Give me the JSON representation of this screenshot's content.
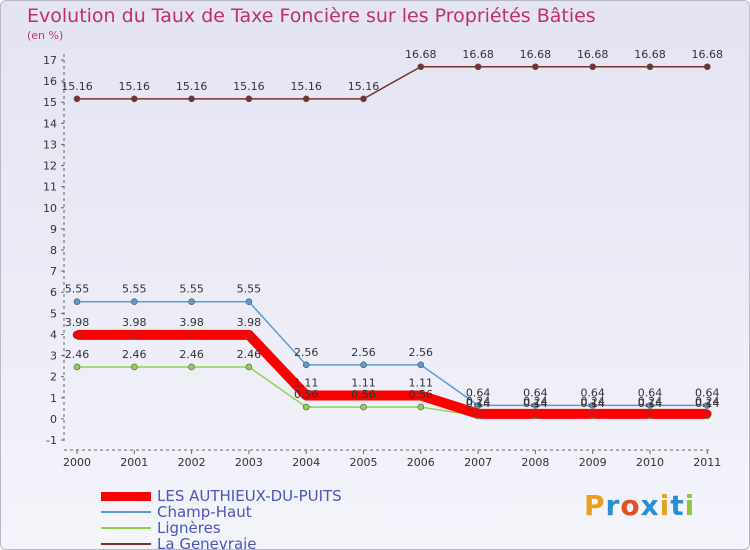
{
  "chart_data": {
    "type": "line",
    "title": "Evolution du Taux de Taxe Foncière sur les Propriétés Bâties",
    "ylabel": "(en %)",
    "xlabel": "",
    "x": [
      "2000",
      "2001",
      "2002",
      "2003",
      "2004",
      "2005",
      "2006",
      "2007",
      "2008",
      "2009",
      "2010",
      "2011"
    ],
    "ylim": [
      -1,
      17
    ],
    "yticks": [
      -1,
      0,
      1,
      2,
      3,
      4,
      5,
      6,
      7,
      8,
      9,
      10,
      11,
      12,
      13,
      14,
      15,
      16,
      17
    ],
    "grid": false,
    "legend_position": "bottom-left",
    "series": [
      {
        "name": "LES AUTHIEUX-DU-PUITS",
        "color": "#ff0000",
        "values": [
          3.98,
          3.98,
          3.98,
          3.98,
          1.11,
          1.11,
          1.11,
          0.24,
          0.24,
          0.24,
          0.24,
          0.24
        ],
        "labels": [
          "3.98",
          "3.98",
          "3.98",
          "3.98",
          "1.11",
          "1.11",
          "1.11",
          "0.24",
          "0.24",
          "0.24",
          "0.24",
          "0.24"
        ]
      },
      {
        "name": "Champ-Haut",
        "color": "#5b9bd5",
        "values": [
          5.55,
          5.55,
          5.55,
          5.55,
          2.56,
          2.56,
          2.56,
          0.64,
          0.64,
          0.64,
          0.64,
          0.64
        ],
        "labels": [
          "5.55",
          "5.55",
          "5.55",
          "5.55",
          "2.56",
          "2.56",
          "2.56",
          "0.64",
          "0.64",
          "0.64",
          "0.64",
          "0.64"
        ]
      },
      {
        "name": "Lignères",
        "color": "#8fd14f",
        "values": [
          2.46,
          2.46,
          2.46,
          2.46,
          0.56,
          0.56,
          0.56,
          0.14,
          0.14,
          0.14,
          0.14,
          0.14
        ],
        "labels": [
          "2.46",
          "2.46",
          "2.46",
          "2.46",
          "0.56",
          "0.56",
          "0.56",
          "0.14",
          "0.14",
          "0.14",
          "0.14",
          "0.14"
        ]
      },
      {
        "name": "La Genevraie",
        "color": "#7b2f2f",
        "values": [
          15.16,
          15.16,
          15.16,
          15.16,
          15.16,
          15.16,
          16.68,
          16.68,
          16.68,
          16.68,
          16.68,
          16.68
        ],
        "labels": [
          "15.16",
          "15.16",
          "15.16",
          "15.16",
          "15.16",
          "15.16",
          "16.68",
          "16.68",
          "16.68",
          "16.68",
          "16.68",
          "16.68"
        ]
      }
    ]
  },
  "logo": {
    "text": "Proxiti",
    "letters": [
      "P",
      "r",
      "o",
      "x",
      "i",
      "t",
      "i"
    ],
    "colors": [
      "#e8a020",
      "#2a8fd0",
      "#e05020",
      "#2a8fd0",
      "#e8a020",
      "#2a8fd0",
      "#8cc63f"
    ]
  }
}
